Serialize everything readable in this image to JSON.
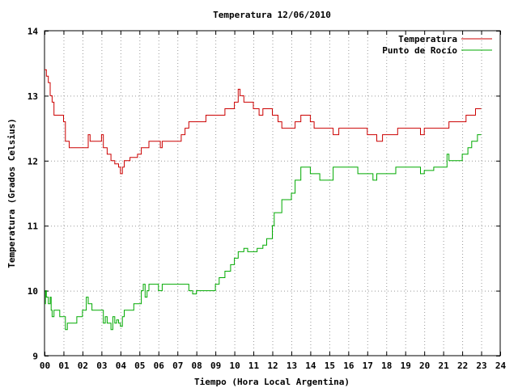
{
  "chart_data": {
    "type": "line",
    "title": "Temperatura 12/06/2010",
    "xlabel": "Tiempo (Hora Local Argentina)",
    "ylabel": "Temperatura (Grados Celsius)",
    "xlim": [
      0,
      24
    ],
    "ylim": [
      9,
      14
    ],
    "grid": true,
    "legend_position": "top-right",
    "x_tick_labels": [
      "00",
      "01",
      "02",
      "03",
      "04",
      "05",
      "06",
      "07",
      "08",
      "09",
      "10",
      "11",
      "12",
      "13",
      "14",
      "15",
      "16",
      "17",
      "18",
      "19",
      "20",
      "21",
      "22",
      "23",
      "24"
    ],
    "y_tick_labels": [
      "9",
      "10",
      "11",
      "12",
      "13",
      "14"
    ],
    "series": [
      {
        "name": "Temperatura",
        "color": "#cc0000",
        "x": [
          0.0,
          0.1,
          0.2,
          0.3,
          0.4,
          0.5,
          1.0,
          1.1,
          1.3,
          1.5,
          2.1,
          2.3,
          2.4,
          2.5,
          2.9,
          3.0,
          3.1,
          3.3,
          3.5,
          3.7,
          3.9,
          4.0,
          4.1,
          4.2,
          4.5,
          4.9,
          5.1,
          5.5,
          6.0,
          6.1,
          6.2,
          7.0,
          7.2,
          7.4,
          7.6,
          8.0,
          8.5,
          9.0,
          9.5,
          10.0,
          10.2,
          10.3,
          10.5,
          10.6,
          11.0,
          11.3,
          11.5,
          11.9,
          12.0,
          12.3,
          12.5,
          13.0,
          13.2,
          13.5,
          14.0,
          14.2,
          14.5,
          15.0,
          15.2,
          15.5,
          16.5,
          17.0,
          17.3,
          17.5,
          17.8,
          18.0,
          18.6,
          19.0,
          19.5,
          19.8,
          20.0,
          21.0,
          21.3,
          21.5,
          22.2,
          22.6,
          22.7,
          23.0
        ],
        "values": [
          13.4,
          13.3,
          13.2,
          13.0,
          12.9,
          12.7,
          12.6,
          12.3,
          12.2,
          12.2,
          12.2,
          12.4,
          12.3,
          12.3,
          12.3,
          12.4,
          12.2,
          12.1,
          12.0,
          11.95,
          11.9,
          11.8,
          11.9,
          12.0,
          12.05,
          12.1,
          12.2,
          12.3,
          12.3,
          12.2,
          12.3,
          12.3,
          12.4,
          12.5,
          12.6,
          12.6,
          12.7,
          12.7,
          12.8,
          12.9,
          13.1,
          13.0,
          12.9,
          12.9,
          12.8,
          12.7,
          12.8,
          12.8,
          12.7,
          12.6,
          12.5,
          12.5,
          12.6,
          12.7,
          12.6,
          12.5,
          12.5,
          12.5,
          12.4,
          12.5,
          12.5,
          12.4,
          12.4,
          12.3,
          12.4,
          12.4,
          12.5,
          12.5,
          12.5,
          12.4,
          12.5,
          12.5,
          12.6,
          12.6,
          12.7,
          12.7,
          12.8,
          12.8
        ]
      },
      {
        "name": "Punto de Rocío",
        "color": "#00aa00",
        "x": [
          0.0,
          0.05,
          0.1,
          0.2,
          0.3,
          0.35,
          0.4,
          0.5,
          0.6,
          0.8,
          1.0,
          1.1,
          1.2,
          1.3,
          1.5,
          1.7,
          2.0,
          2.2,
          2.3,
          2.5,
          2.7,
          3.0,
          3.1,
          3.2,
          3.3,
          3.5,
          3.6,
          3.7,
          3.8,
          3.9,
          4.0,
          4.1,
          4.2,
          4.5,
          4.7,
          5.0,
          5.1,
          5.2,
          5.3,
          5.4,
          5.5,
          5.8,
          6.0,
          6.2,
          6.5,
          6.8,
          7.0,
          7.3,
          7.6,
          7.8,
          8.0,
          8.5,
          9.0,
          9.2,
          9.5,
          9.8,
          10.0,
          10.2,
          10.4,
          10.5,
          10.7,
          11.0,
          11.2,
          11.5,
          11.7,
          12.0,
          12.1,
          12.3,
          12.5,
          12.8,
          13.0,
          13.2,
          13.5,
          13.8,
          14.0,
          14.2,
          14.5,
          15.0,
          15.2,
          15.5,
          16.0,
          16.5,
          17.0,
          17.3,
          17.5,
          17.8,
          18.0,
          18.5,
          19.0,
          19.5,
          19.8,
          20.0,
          20.5,
          21.0,
          21.2,
          21.3,
          21.5,
          21.8,
          22.0,
          22.3,
          22.5,
          22.8,
          23.0
        ],
        "values": [
          9.8,
          10.0,
          9.9,
          9.8,
          9.9,
          9.7,
          9.6,
          9.7,
          9.7,
          9.6,
          9.6,
          9.4,
          9.5,
          9.5,
          9.5,
          9.6,
          9.7,
          9.9,
          9.8,
          9.7,
          9.7,
          9.7,
          9.5,
          9.6,
          9.5,
          9.4,
          9.6,
          9.5,
          9.55,
          9.5,
          9.45,
          9.6,
          9.7,
          9.7,
          9.8,
          9.8,
          10.0,
          10.1,
          9.9,
          10.0,
          10.1,
          10.1,
          10.0,
          10.1,
          10.1,
          10.1,
          10.1,
          10.1,
          10.0,
          9.95,
          10.0,
          10.0,
          10.1,
          10.2,
          10.3,
          10.4,
          10.5,
          10.6,
          10.6,
          10.65,
          10.6,
          10.6,
          10.65,
          10.7,
          10.8,
          11.0,
          11.2,
          11.2,
          11.4,
          11.4,
          11.5,
          11.7,
          11.9,
          11.9,
          11.8,
          11.8,
          11.7,
          11.7,
          11.9,
          11.9,
          11.9,
          11.8,
          11.8,
          11.7,
          11.8,
          11.8,
          11.8,
          11.9,
          11.9,
          11.9,
          11.8,
          11.85,
          11.9,
          11.9,
          12.1,
          12.0,
          12.0,
          12.0,
          12.1,
          12.2,
          12.3,
          12.4,
          12.4
        ]
      }
    ]
  }
}
